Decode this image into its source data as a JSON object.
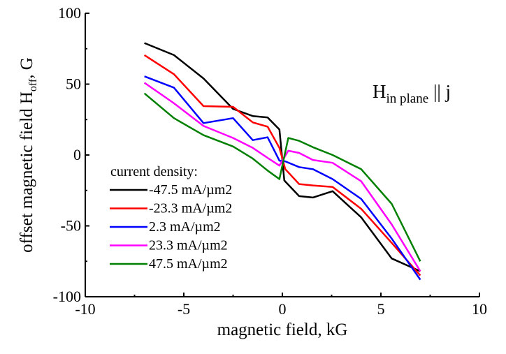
{
  "chart_data": {
    "type": "line",
    "title": "",
    "xlabel": "magnetic field, kG",
    "ylabel_main": "offset magnetic field H",
    "ylabel_sub": "off",
    "ylabel_suffix": ", G",
    "xlim": [
      -10,
      10
    ],
    "ylim": [
      -100,
      100
    ],
    "xticks": [
      -10,
      -5,
      0,
      5,
      10
    ],
    "yticks": [
      -100,
      -50,
      0,
      50,
      100
    ],
    "xtick_labels": [
      "-10",
      "-5",
      "0",
      "5",
      "10"
    ],
    "ytick_labels": [
      "-100",
      "-50",
      "0",
      "50",
      "100"
    ],
    "grid": false,
    "legend_title": "current density:",
    "legend_position": "bottom-left",
    "annotation": {
      "main": "H",
      "sub": "in plane",
      "suffix": " || j",
      "position": "top-right"
    },
    "series": [
      {
        "name": "-47.5 mA/µm2",
        "color": "#000000",
        "points": [
          [
            -7,
            79
          ],
          [
            -5.5,
            70.5
          ],
          [
            -4,
            54
          ],
          [
            -2.5,
            32.5
          ],
          [
            -1.5,
            27.5
          ],
          [
            -0.75,
            26.5
          ],
          [
            -0.15,
            18
          ],
          [
            0.1,
            -18
          ],
          [
            0.85,
            -29
          ],
          [
            1.55,
            -30
          ],
          [
            2.55,
            -25.5
          ],
          [
            4,
            -44
          ],
          [
            5.55,
            -73
          ],
          [
            7,
            -82
          ]
        ]
      },
      {
        "name": "-23.3 mA/µm2",
        "color": "#ff0000",
        "points": [
          [
            -7,
            70.5
          ],
          [
            -5.5,
            57
          ],
          [
            -4,
            34.5
          ],
          [
            -2.5,
            34
          ],
          [
            -1.5,
            23
          ],
          [
            -0.75,
            20
          ],
          [
            -0.15,
            5
          ],
          [
            0.15,
            -10
          ],
          [
            0.85,
            -20.5
          ],
          [
            1.55,
            -21.5
          ],
          [
            2.55,
            -22.5
          ],
          [
            4,
            -38
          ],
          [
            5.55,
            -62
          ],
          [
            7,
            -85
          ]
        ]
      },
      {
        "name": "2.3 mA/µm2",
        "color": "#0000ff",
        "points": [
          [
            -7,
            55.5
          ],
          [
            -5.5,
            47.5
          ],
          [
            -4,
            22.5
          ],
          [
            -2.5,
            26
          ],
          [
            -1.5,
            10.5
          ],
          [
            -0.75,
            12.5
          ],
          [
            -0.15,
            -4
          ],
          [
            0.15,
            -4.5
          ],
          [
            0.85,
            -8.5
          ],
          [
            1.55,
            -10
          ],
          [
            2.55,
            -17
          ],
          [
            4,
            -31
          ],
          [
            5.55,
            -59
          ],
          [
            7,
            -88
          ]
        ]
      },
      {
        "name": "23.3 mA/µm2",
        "color": "#ff00ff",
        "points": [
          [
            -7,
            51
          ],
          [
            -5.5,
            36.5
          ],
          [
            -4,
            20.5
          ],
          [
            -2.5,
            12
          ],
          [
            -1.5,
            5
          ],
          [
            -0.75,
            -2
          ],
          [
            -0.15,
            -7.5
          ],
          [
            0.3,
            3
          ],
          [
            0.85,
            1.5
          ],
          [
            1.55,
            -3.5
          ],
          [
            2.55,
            -5.5
          ],
          [
            4,
            -18.5
          ],
          [
            5.55,
            -49
          ],
          [
            7,
            -82
          ]
        ]
      },
      {
        "name": "47.5 mA/µm2",
        "color": "#008000",
        "points": [
          [
            -7,
            43.5
          ],
          [
            -5.5,
            26
          ],
          [
            -4,
            14
          ],
          [
            -2.5,
            6
          ],
          [
            -1.5,
            -2.5
          ],
          [
            -0.75,
            -11
          ],
          [
            -0.15,
            -17
          ],
          [
            0.3,
            12
          ],
          [
            0.85,
            10
          ],
          [
            1.55,
            5.5
          ],
          [
            2.55,
            0
          ],
          [
            4,
            -10
          ],
          [
            5.55,
            -34.5
          ],
          [
            7,
            -75
          ]
        ]
      }
    ]
  }
}
